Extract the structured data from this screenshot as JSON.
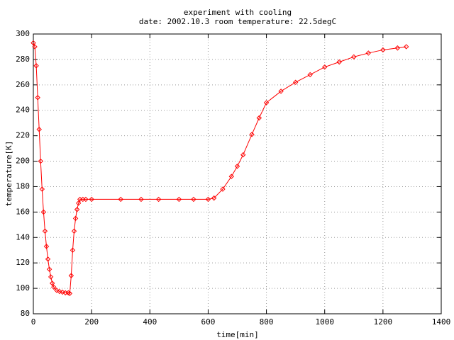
{
  "chart_data": {
    "type": "line",
    "title": "experiment with cooling",
    "subtitle": "date: 2002.10.3 room temperature: 22.5degC",
    "x_label": "time[min]",
    "y_label": "temperature[K]",
    "xlim": [
      0,
      1400
    ],
    "xticks": [
      0,
      200,
      400,
      600,
      800,
      1000,
      1200,
      1400
    ],
    "ylim": [
      80,
      300
    ],
    "yticks": [
      80,
      100,
      120,
      140,
      160,
      180,
      200,
      220,
      240,
      260,
      280,
      300
    ],
    "grid": true,
    "series": [
      {
        "color": "#ff0000",
        "x": [
          0,
          5,
          10,
          15,
          20,
          25,
          30,
          35,
          40,
          45,
          50,
          55,
          60,
          65,
          70,
          80,
          90,
          100,
          110,
          120,
          125,
          130,
          135,
          140,
          145,
          150,
          155,
          160,
          170,
          180,
          200,
          300,
          370,
          430,
          500,
          550,
          600,
          620,
          650,
          680,
          700,
          720,
          750,
          775,
          800,
          850,
          900,
          950,
          1000,
          1050,
          1100,
          1150,
          1200,
          1250,
          1280
        ],
        "values": [
          293,
          290,
          275,
          250,
          225,
          200,
          178,
          160,
          145,
          133,
          123,
          115,
          109,
          104,
          101,
          98.5,
          97.5,
          97,
          96.5,
          96.5,
          96,
          110,
          130,
          145,
          155,
          162,
          167,
          170,
          170,
          170,
          170,
          170,
          170,
          170,
          170,
          170,
          170,
          171,
          178,
          188,
          196,
          205,
          221,
          234,
          246,
          255,
          262,
          268,
          274,
          278,
          282,
          285,
          287.5,
          289,
          290
        ]
      }
    ]
  }
}
